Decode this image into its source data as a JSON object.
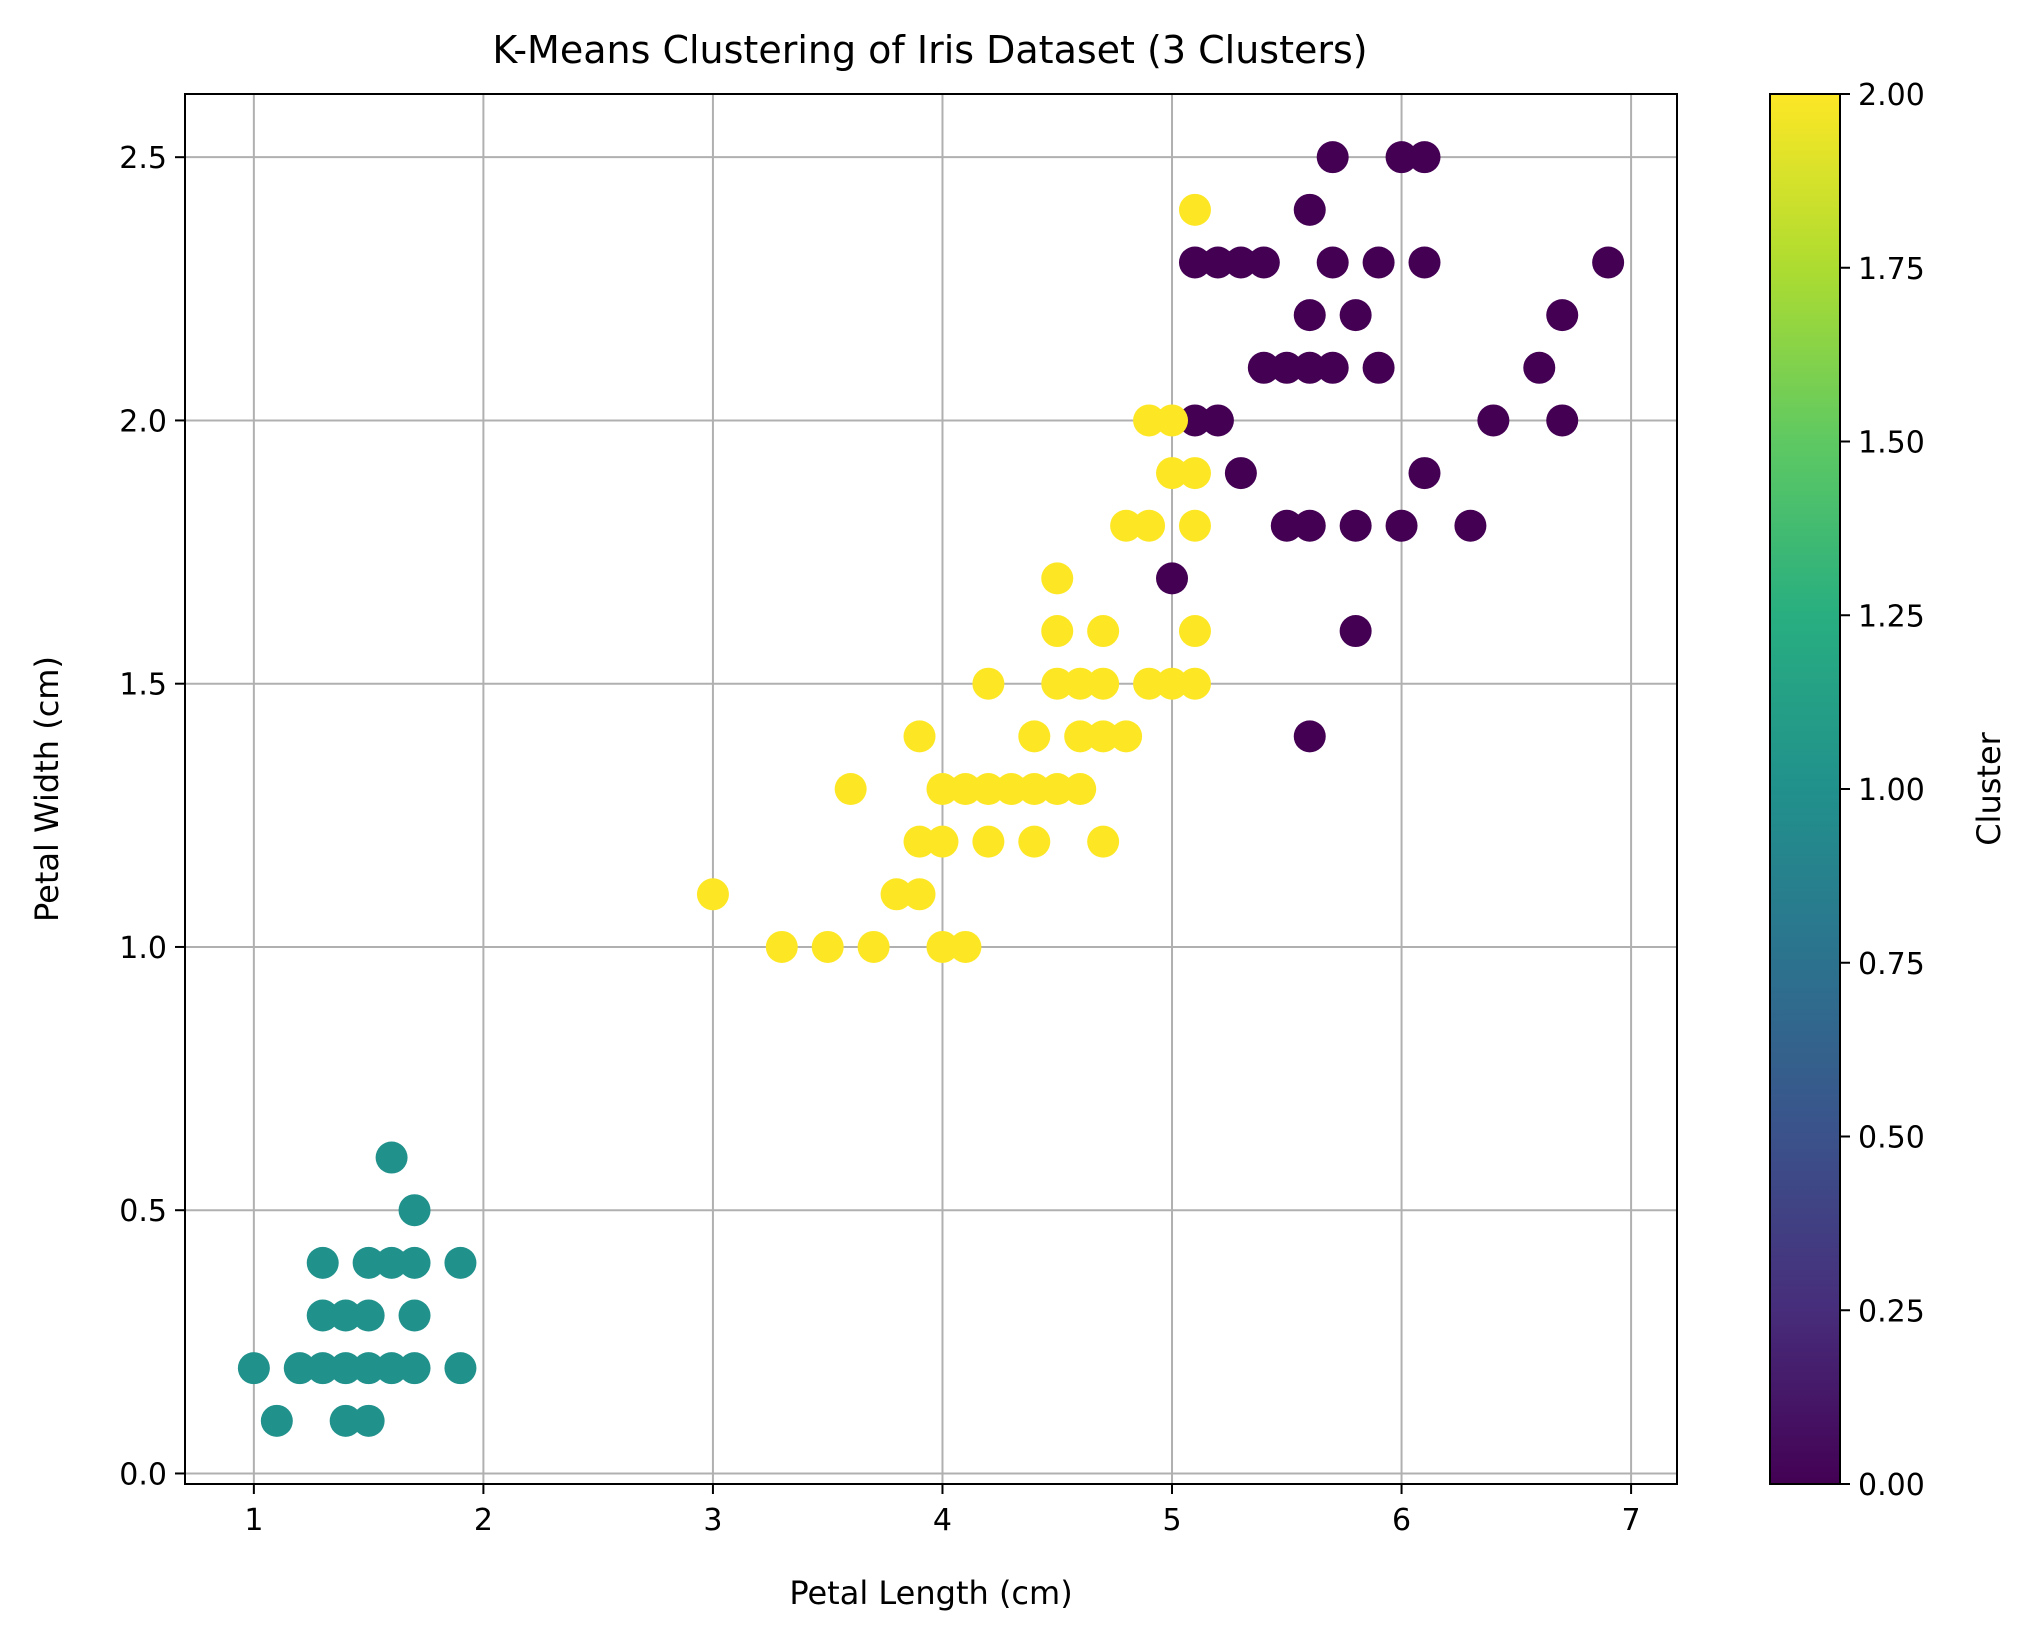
{
  "chart_data": {
    "type": "scatter",
    "title": "K-Means Clustering of Iris Dataset (3 Clusters)",
    "xlabel": "Petal Length (cm)",
    "ylabel": "Petal Width (cm)",
    "xlim": [
      0.7,
      7.2
    ],
    "ylim": [
      -0.02,
      2.62
    ],
    "xticks": [
      1,
      2,
      3,
      4,
      5,
      6,
      7
    ],
    "yticks": [
      0.0,
      0.5,
      1.0,
      1.5,
      2.0,
      2.5
    ],
    "xtick_labels": [
      "1",
      "2",
      "3",
      "4",
      "5",
      "6",
      "7"
    ],
    "ytick_labels": [
      "0.0",
      "0.5",
      "1.0",
      "1.5",
      "2.0",
      "2.5"
    ],
    "grid": true,
    "colorbar": {
      "label": "Cluster",
      "range": [
        0.0,
        2.0
      ],
      "ticks": [
        0.0,
        0.25,
        0.5,
        0.75,
        1.0,
        1.25,
        1.5,
        1.75,
        2.0
      ],
      "tick_labels": [
        "0.00",
        "0.25",
        "0.50",
        "0.75",
        "1.00",
        "1.25",
        "1.50",
        "1.75",
        "2.00"
      ],
      "colormap": "viridis"
    },
    "cluster_colors": {
      "0": "#440154",
      "1": "#21918c",
      "2": "#fde725"
    },
    "series": [
      {
        "cluster": 0,
        "points": [
          [
            5.7,
            2.5
          ],
          [
            6.0,
            2.5
          ],
          [
            6.1,
            2.5
          ],
          [
            5.6,
            2.4
          ],
          [
            5.1,
            2.3
          ],
          [
            5.2,
            2.3
          ],
          [
            5.3,
            2.3
          ],
          [
            5.4,
            2.3
          ],
          [
            5.7,
            2.3
          ],
          [
            5.9,
            2.3
          ],
          [
            6.1,
            2.3
          ],
          [
            6.9,
            2.3
          ],
          [
            5.6,
            2.2
          ],
          [
            5.8,
            2.2
          ],
          [
            6.7,
            2.2
          ],
          [
            5.4,
            2.1
          ],
          [
            5.5,
            2.1
          ],
          [
            5.6,
            2.1
          ],
          [
            5.7,
            2.1
          ],
          [
            5.9,
            2.1
          ],
          [
            6.6,
            2.1
          ],
          [
            5.1,
            2.0
          ],
          [
            5.2,
            2.0
          ],
          [
            6.4,
            2.0
          ],
          [
            6.7,
            2.0
          ],
          [
            5.3,
            1.9
          ],
          [
            6.1,
            1.9
          ],
          [
            5.5,
            1.8
          ],
          [
            5.6,
            1.8
          ],
          [
            5.8,
            1.8
          ],
          [
            6.0,
            1.8
          ],
          [
            6.3,
            1.8
          ],
          [
            5.0,
            1.7
          ],
          [
            5.8,
            1.6
          ],
          [
            5.6,
            1.4
          ]
        ]
      },
      {
        "cluster": 1,
        "points": [
          [
            1.6,
            0.6
          ],
          [
            1.7,
            0.5
          ],
          [
            1.3,
            0.4
          ],
          [
            1.5,
            0.4
          ],
          [
            1.6,
            0.4
          ],
          [
            1.7,
            0.4
          ],
          [
            1.9,
            0.4
          ],
          [
            1.3,
            0.3
          ],
          [
            1.4,
            0.3
          ],
          [
            1.5,
            0.3
          ],
          [
            1.7,
            0.3
          ],
          [
            1.0,
            0.2
          ],
          [
            1.2,
            0.2
          ],
          [
            1.3,
            0.2
          ],
          [
            1.4,
            0.2
          ],
          [
            1.5,
            0.2
          ],
          [
            1.6,
            0.2
          ],
          [
            1.7,
            0.2
          ],
          [
            1.9,
            0.2
          ],
          [
            1.1,
            0.1
          ],
          [
            1.4,
            0.1
          ],
          [
            1.5,
            0.1
          ]
        ]
      },
      {
        "cluster": 2,
        "points": [
          [
            5.1,
            2.4
          ],
          [
            4.9,
            2.0
          ],
          [
            5.0,
            2.0
          ],
          [
            5.0,
            1.9
          ],
          [
            5.1,
            1.9
          ],
          [
            4.8,
            1.8
          ],
          [
            4.9,
            1.8
          ],
          [
            5.1,
            1.8
          ],
          [
            4.5,
            1.7
          ],
          [
            4.5,
            1.6
          ],
          [
            4.7,
            1.6
          ],
          [
            5.1,
            1.6
          ],
          [
            4.2,
            1.5
          ],
          [
            4.5,
            1.5
          ],
          [
            4.6,
            1.5
          ],
          [
            4.7,
            1.5
          ],
          [
            4.9,
            1.5
          ],
          [
            5.0,
            1.5
          ],
          [
            5.1,
            1.5
          ],
          [
            3.9,
            1.4
          ],
          [
            4.4,
            1.4
          ],
          [
            4.6,
            1.4
          ],
          [
            4.7,
            1.4
          ],
          [
            4.8,
            1.4
          ],
          [
            3.6,
            1.3
          ],
          [
            4.0,
            1.3
          ],
          [
            4.1,
            1.3
          ],
          [
            4.2,
            1.3
          ],
          [
            4.3,
            1.3
          ],
          [
            4.4,
            1.3
          ],
          [
            4.5,
            1.3
          ],
          [
            4.6,
            1.3
          ],
          [
            3.9,
            1.2
          ],
          [
            4.0,
            1.2
          ],
          [
            4.2,
            1.2
          ],
          [
            4.4,
            1.2
          ],
          [
            4.7,
            1.2
          ],
          [
            3.0,
            1.1
          ],
          [
            3.8,
            1.1
          ],
          [
            3.9,
            1.1
          ],
          [
            3.3,
            1.0
          ],
          [
            3.5,
            1.0
          ],
          [
            3.7,
            1.0
          ],
          [
            4.0,
            1.0
          ],
          [
            4.1,
            1.0
          ]
        ]
      }
    ]
  }
}
